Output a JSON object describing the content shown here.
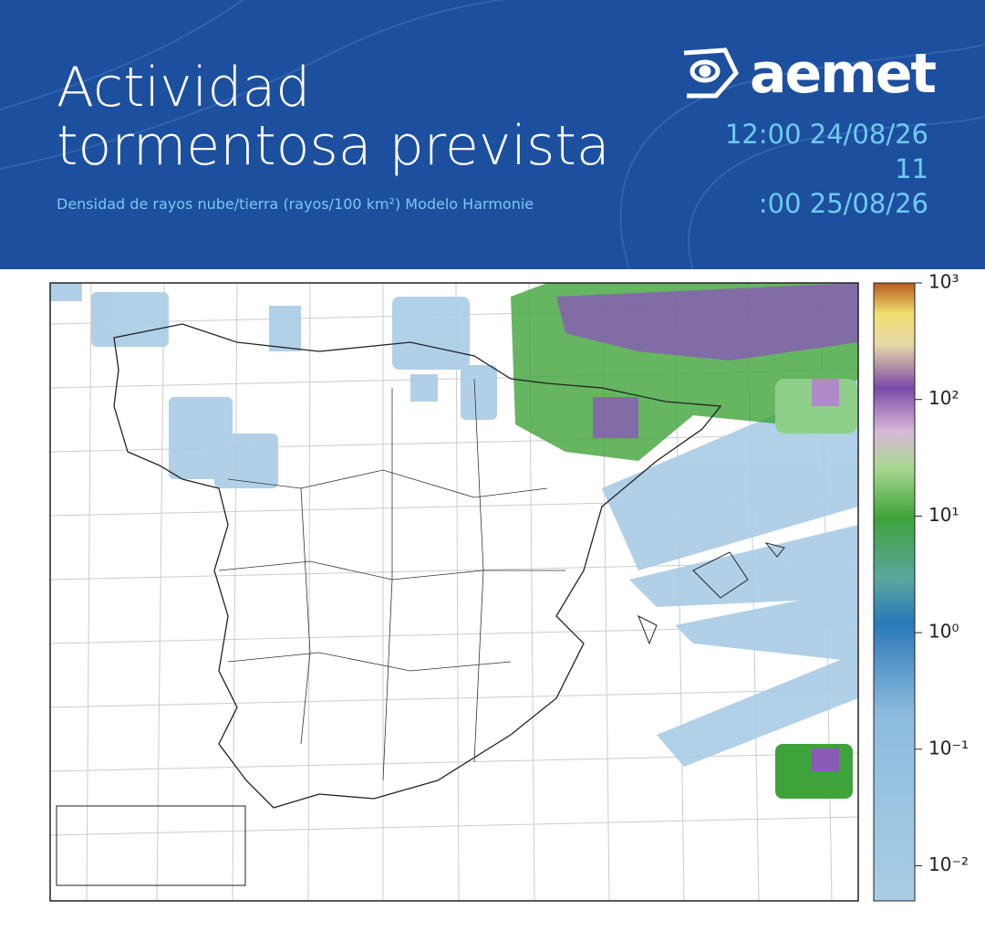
{
  "header": {
    "title": [
      "Actividad",
      "tormentosa prevista"
    ],
    "subtitle": "Densidad de rayos nube/tierra (rayos/100 km²) Modelo Harmonie",
    "logo": "aemet",
    "times": [
      "12:00 24/08/26",
      "11",
      ":00 25/08/26"
    ]
  },
  "colorbar": {
    "scale": "log",
    "clim": [
      0.005,
      1000
    ],
    "ticks": [
      {
        "value": 1000,
        "label": "10³"
      },
      {
        "value": 100,
        "label": "10²"
      },
      {
        "value": 10,
        "label": "10¹"
      },
      {
        "value": 1,
        "label": "10⁰"
      },
      {
        "value": 0.1,
        "label": "10⁻¹"
      },
      {
        "value": 0.01,
        "label": "10⁻²"
      }
    ]
  }
}
